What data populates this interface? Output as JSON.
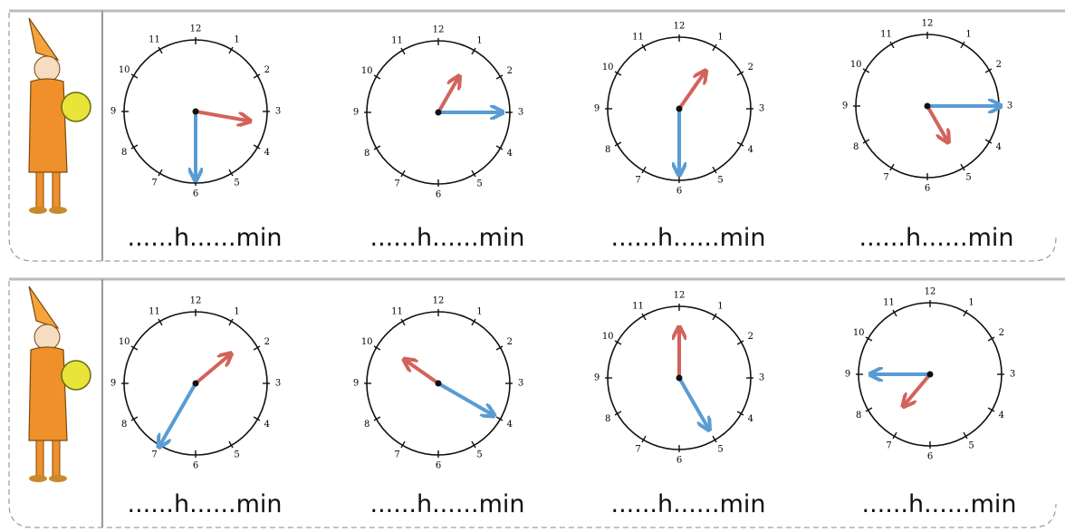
{
  "dial": [
    "12",
    "1",
    "2",
    "3",
    "4",
    "5",
    "6",
    "7",
    "8",
    "9",
    "10",
    "11"
  ],
  "rows": [
    {
      "clocks": [
        {
          "answer": "......h......min"
        },
        {
          "answer": "......h......min"
        },
        {
          "answer": "......h......min"
        },
        {
          "answer": "......h......min"
        }
      ]
    },
    {
      "clocks": [
        {
          "answer": "......h......min"
        },
        {
          "answer": "......h......min"
        },
        {
          "answer": "......h......min"
        },
        {
          "answer": "......h......min"
        }
      ]
    }
  ]
}
